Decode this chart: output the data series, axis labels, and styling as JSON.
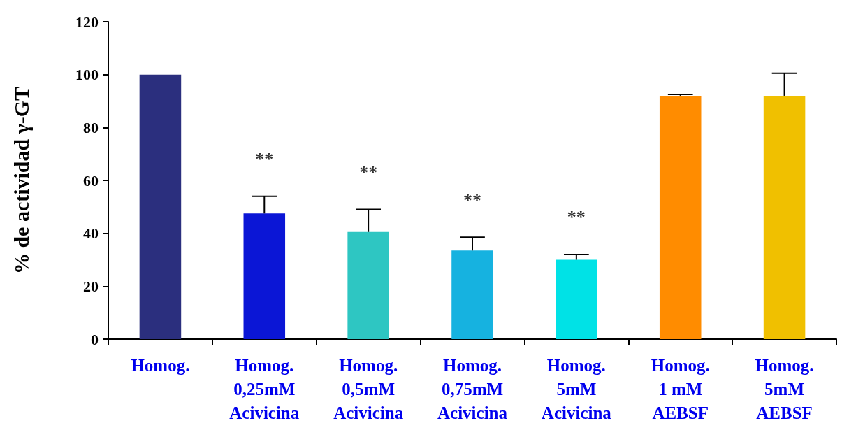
{
  "chart_data": {
    "type": "bar",
    "ylabel": "% de actividad γ-GT",
    "categories": [
      "Homog.",
      "Homog.\n0,25mM\nAcivicina",
      "Homog.\n0,5mM\nAcivicina",
      "Homog.\n0,75mM\nAcivicina",
      "Homog.\n5mM\nAcivicina",
      "Homog.\n1 mM\nAEBSF",
      "Homog.\n5mM\nAEBSF"
    ],
    "values": [
      100,
      47.5,
      40.5,
      33.5,
      30,
      92,
      92
    ],
    "colors": [
      "#2b2f7e",
      "#0b16d6",
      "#2ec6c2",
      "#16b2e0",
      "#00e2e6",
      "#ff8c00",
      "#f0c000"
    ],
    "errors": [
      null,
      [
        47.5,
        54
      ],
      [
        40.5,
        49
      ],
      [
        33.5,
        38.5
      ],
      [
        30,
        32
      ],
      [
        92,
        92.5
      ],
      [
        92,
        100.5
      ]
    ],
    "annotations": [
      "**",
      "**",
      "**",
      "**"
    ],
    "ylim": [
      0,
      120
    ],
    "yticks": [
      0,
      20,
      40,
      60,
      80,
      100,
      120
    ],
    "grid": false
  }
}
